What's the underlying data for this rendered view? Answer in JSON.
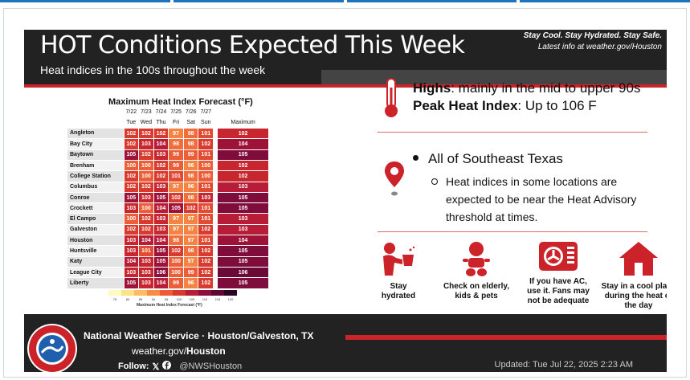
{
  "header": {
    "title": "HOT Conditions Expected This Week",
    "subtitle": "Heat indices in the 100s throughout the week",
    "tagline": "Stay Cool. Stay Hydrated. Stay Safe.",
    "latest": "Latest info at weather.gov/Houston"
  },
  "table": {
    "title": "Maximum Heat Index Forecast (°F)",
    "dates": [
      "7/22",
      "7/23",
      "7/24",
      "7/25",
      "7/26",
      "7/27"
    ],
    "days": [
      "Tue",
      "Wed",
      "Thu",
      "Fri",
      "Sat",
      "Sun"
    ],
    "max_label": "Maximum",
    "rows": [
      {
        "loc": "Angleton",
        "vals": [
          102,
          102,
          102,
          97,
          98,
          101
        ],
        "max": 102
      },
      {
        "loc": "Bay City",
        "vals": [
          102,
          103,
          104,
          98,
          98,
          102
        ],
        "max": 104
      },
      {
        "loc": "Baytown",
        "vals": [
          105,
          102,
          103,
          99,
          99,
          101
        ],
        "max": 105
      },
      {
        "loc": "Brenham",
        "vals": [
          100,
          100,
          102,
          99,
          96,
          100
        ],
        "max": 102
      },
      {
        "loc": "College Station",
        "vals": [
          102,
          100,
          102,
          101,
          98,
          100
        ],
        "max": 102
      },
      {
        "loc": "Columbus",
        "vals": [
          102,
          102,
          103,
          97,
          96,
          101
        ],
        "max": 103
      },
      {
        "loc": "Conroe",
        "vals": [
          105,
          103,
          105,
          102,
          98,
          103
        ],
        "max": 105
      },
      {
        "loc": "Crockett",
        "vals": [
          103,
          100,
          104,
          105,
          102,
          101
        ],
        "max": 105
      },
      {
        "loc": "El Campo",
        "vals": [
          100,
          102,
          103,
          97,
          97,
          101
        ],
        "max": 103
      },
      {
        "loc": "Galveston",
        "vals": [
          102,
          102,
          103,
          97,
          97,
          102
        ],
        "max": 103
      },
      {
        "loc": "Houston",
        "vals": [
          103,
          104,
          104,
          98,
          97,
          101
        ],
        "max": 104
      },
      {
        "loc": "Huntsville",
        "vals": [
          103,
          101,
          105,
          102,
          98,
          102
        ],
        "max": 105
      },
      {
        "loc": "Katy",
        "vals": [
          104,
          103,
          105,
          100,
          97,
          102
        ],
        "max": 105
      },
      {
        "loc": "League City",
        "vals": [
          103,
          103,
          106,
          100,
          99,
          102
        ],
        "max": 106
      },
      {
        "loc": "Liberty",
        "vals": [
          105,
          103,
          104,
          99,
          96,
          102
        ],
        "max": 105
      }
    ],
    "scale": {
      "labels": [
        "75",
        "80",
        "85",
        "90",
        "95",
        "100",
        "105",
        "110",
        "115",
        "120"
      ],
      "colors": [
        "#fff9c4",
        "#ffe28a",
        "#fdbb63",
        "#f98b45",
        "#ef5b38",
        "#d93a2e",
        "#b71d37",
        "#8e0f3d",
        "#5c0a33",
        "#2b0521"
      ],
      "title": "Maximum Heat Index Forecast (°F)"
    }
  },
  "highs": {
    "label1": "Highs",
    "text1": ": mainly in the mid to upper 90s",
    "label2": "Peak Heat Index",
    "text2": ": Up to 106 F"
  },
  "region": {
    "bullet": "All of Southeast Texas",
    "sub": "Heat indices in some locations are expected to be near the Heat Advisory threshold at times."
  },
  "tips": [
    {
      "icon": "drinking-water-icon",
      "label": [
        "Stay",
        "hydrated"
      ]
    },
    {
      "icon": "baby-icon",
      "label": [
        "Check on elderly,",
        "kids & pets"
      ]
    },
    {
      "icon": "air-conditioner-icon",
      "label": [
        "If you have AC,",
        "use it. Fans may",
        "not be adequate"
      ]
    },
    {
      "icon": "house-icon",
      "label": [
        "Stay in a cool place",
        "during the heat of",
        "the day"
      ]
    }
  ],
  "footer": {
    "org": "National Weather Service · Houston/Galveston, TX",
    "url_prefix": "weather.gov/",
    "url_bold": "Houston",
    "follow": "Follow:",
    "handle": "@NWSHouston",
    "updated": "Updated: Tue Jul 22, 2025 2:23 AM"
  },
  "colors": {
    "red": "#cc2229",
    "dark": "#222222"
  }
}
